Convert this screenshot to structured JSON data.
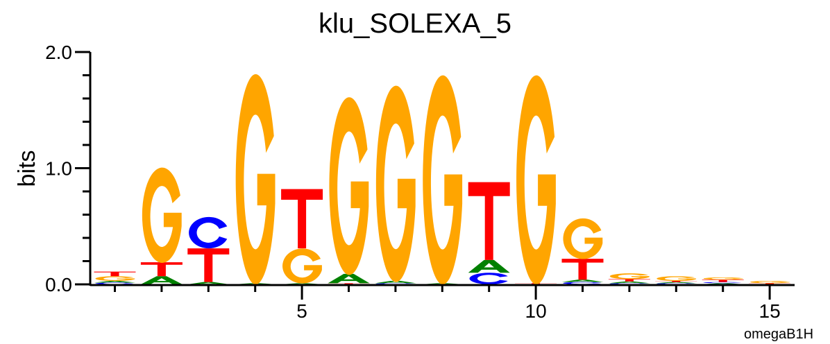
{
  "chart_data": {
    "type": "sequence-logo",
    "title": "klu_SOLEXA_5",
    "ylabel": "bits",
    "xlabel": "",
    "footer": "omegaB1H",
    "ylim": [
      0,
      2.0
    ],
    "xlim": [
      0.5,
      15.5
    ],
    "yticks": [
      "0.0",
      "1.0",
      "2.0"
    ],
    "ytick_values": [
      0,
      1,
      2
    ],
    "xticks": [
      "5",
      "10",
      "15"
    ],
    "xtick_values": [
      5,
      10,
      15
    ],
    "colors": {
      "A": "#008000",
      "C": "#0000ff",
      "G": "#ffa500",
      "T": "#ff0000"
    },
    "positions": [
      {
        "pos": 1,
        "stack": [
          [
            "C",
            0.015
          ],
          [
            "A",
            0.015
          ],
          [
            "G",
            0.04
          ],
          [
            "T",
            0.04
          ]
        ]
      },
      {
        "pos": 2,
        "stack": [
          [
            "A",
            0.07
          ],
          [
            "T",
            0.12
          ],
          [
            "G",
            0.82
          ]
        ]
      },
      {
        "pos": 3,
        "stack": [
          [
            "A",
            0.02
          ],
          [
            "T",
            0.29
          ],
          [
            "C",
            0.27
          ]
        ]
      },
      {
        "pos": 4,
        "stack": [
          [
            "A",
            0.01
          ],
          [
            "G",
            1.81
          ]
        ]
      },
      {
        "pos": 5,
        "stack": [
          [
            "A",
            0.01
          ],
          [
            "G",
            0.3
          ],
          [
            "T",
            0.51
          ]
        ]
      },
      {
        "pos": 6,
        "stack": [
          [
            "T",
            0.01
          ],
          [
            "A",
            0.08
          ],
          [
            "G",
            1.53
          ]
        ]
      },
      {
        "pos": 7,
        "stack": [
          [
            "C",
            0.01
          ],
          [
            "A",
            0.02
          ],
          [
            "G",
            1.69
          ]
        ]
      },
      {
        "pos": 8,
        "stack": [
          [
            "A",
            0.01
          ],
          [
            "G",
            1.8
          ]
        ]
      },
      {
        "pos": 9,
        "stack": [
          [
            "C",
            0.1
          ],
          [
            "A",
            0.11
          ],
          [
            "T",
            0.67
          ]
        ]
      },
      {
        "pos": 10,
        "stack": [
          [
            "T",
            0.01
          ],
          [
            "G",
            1.8
          ]
        ]
      },
      {
        "pos": 11,
        "stack": [
          [
            "C",
            0.02
          ],
          [
            "A",
            0.02
          ],
          [
            "T",
            0.18
          ],
          [
            "G",
            0.35
          ]
        ]
      },
      {
        "pos": 12,
        "stack": [
          [
            "C",
            0.01
          ],
          [
            "A",
            0.015
          ],
          [
            "T",
            0.02
          ],
          [
            "G",
            0.05
          ]
        ]
      },
      {
        "pos": 13,
        "stack": [
          [
            "C",
            0.01
          ],
          [
            "A",
            0.01
          ],
          [
            "T",
            0.01
          ],
          [
            "G",
            0.04
          ]
        ]
      },
      {
        "pos": 14,
        "stack": [
          [
            "A",
            0.01
          ],
          [
            "C",
            0.01
          ],
          [
            "T",
            0.02
          ],
          [
            "G",
            0.02
          ]
        ]
      },
      {
        "pos": 15,
        "stack": [
          [
            "T",
            0.01
          ],
          [
            "G",
            0.02
          ]
        ]
      }
    ]
  }
}
